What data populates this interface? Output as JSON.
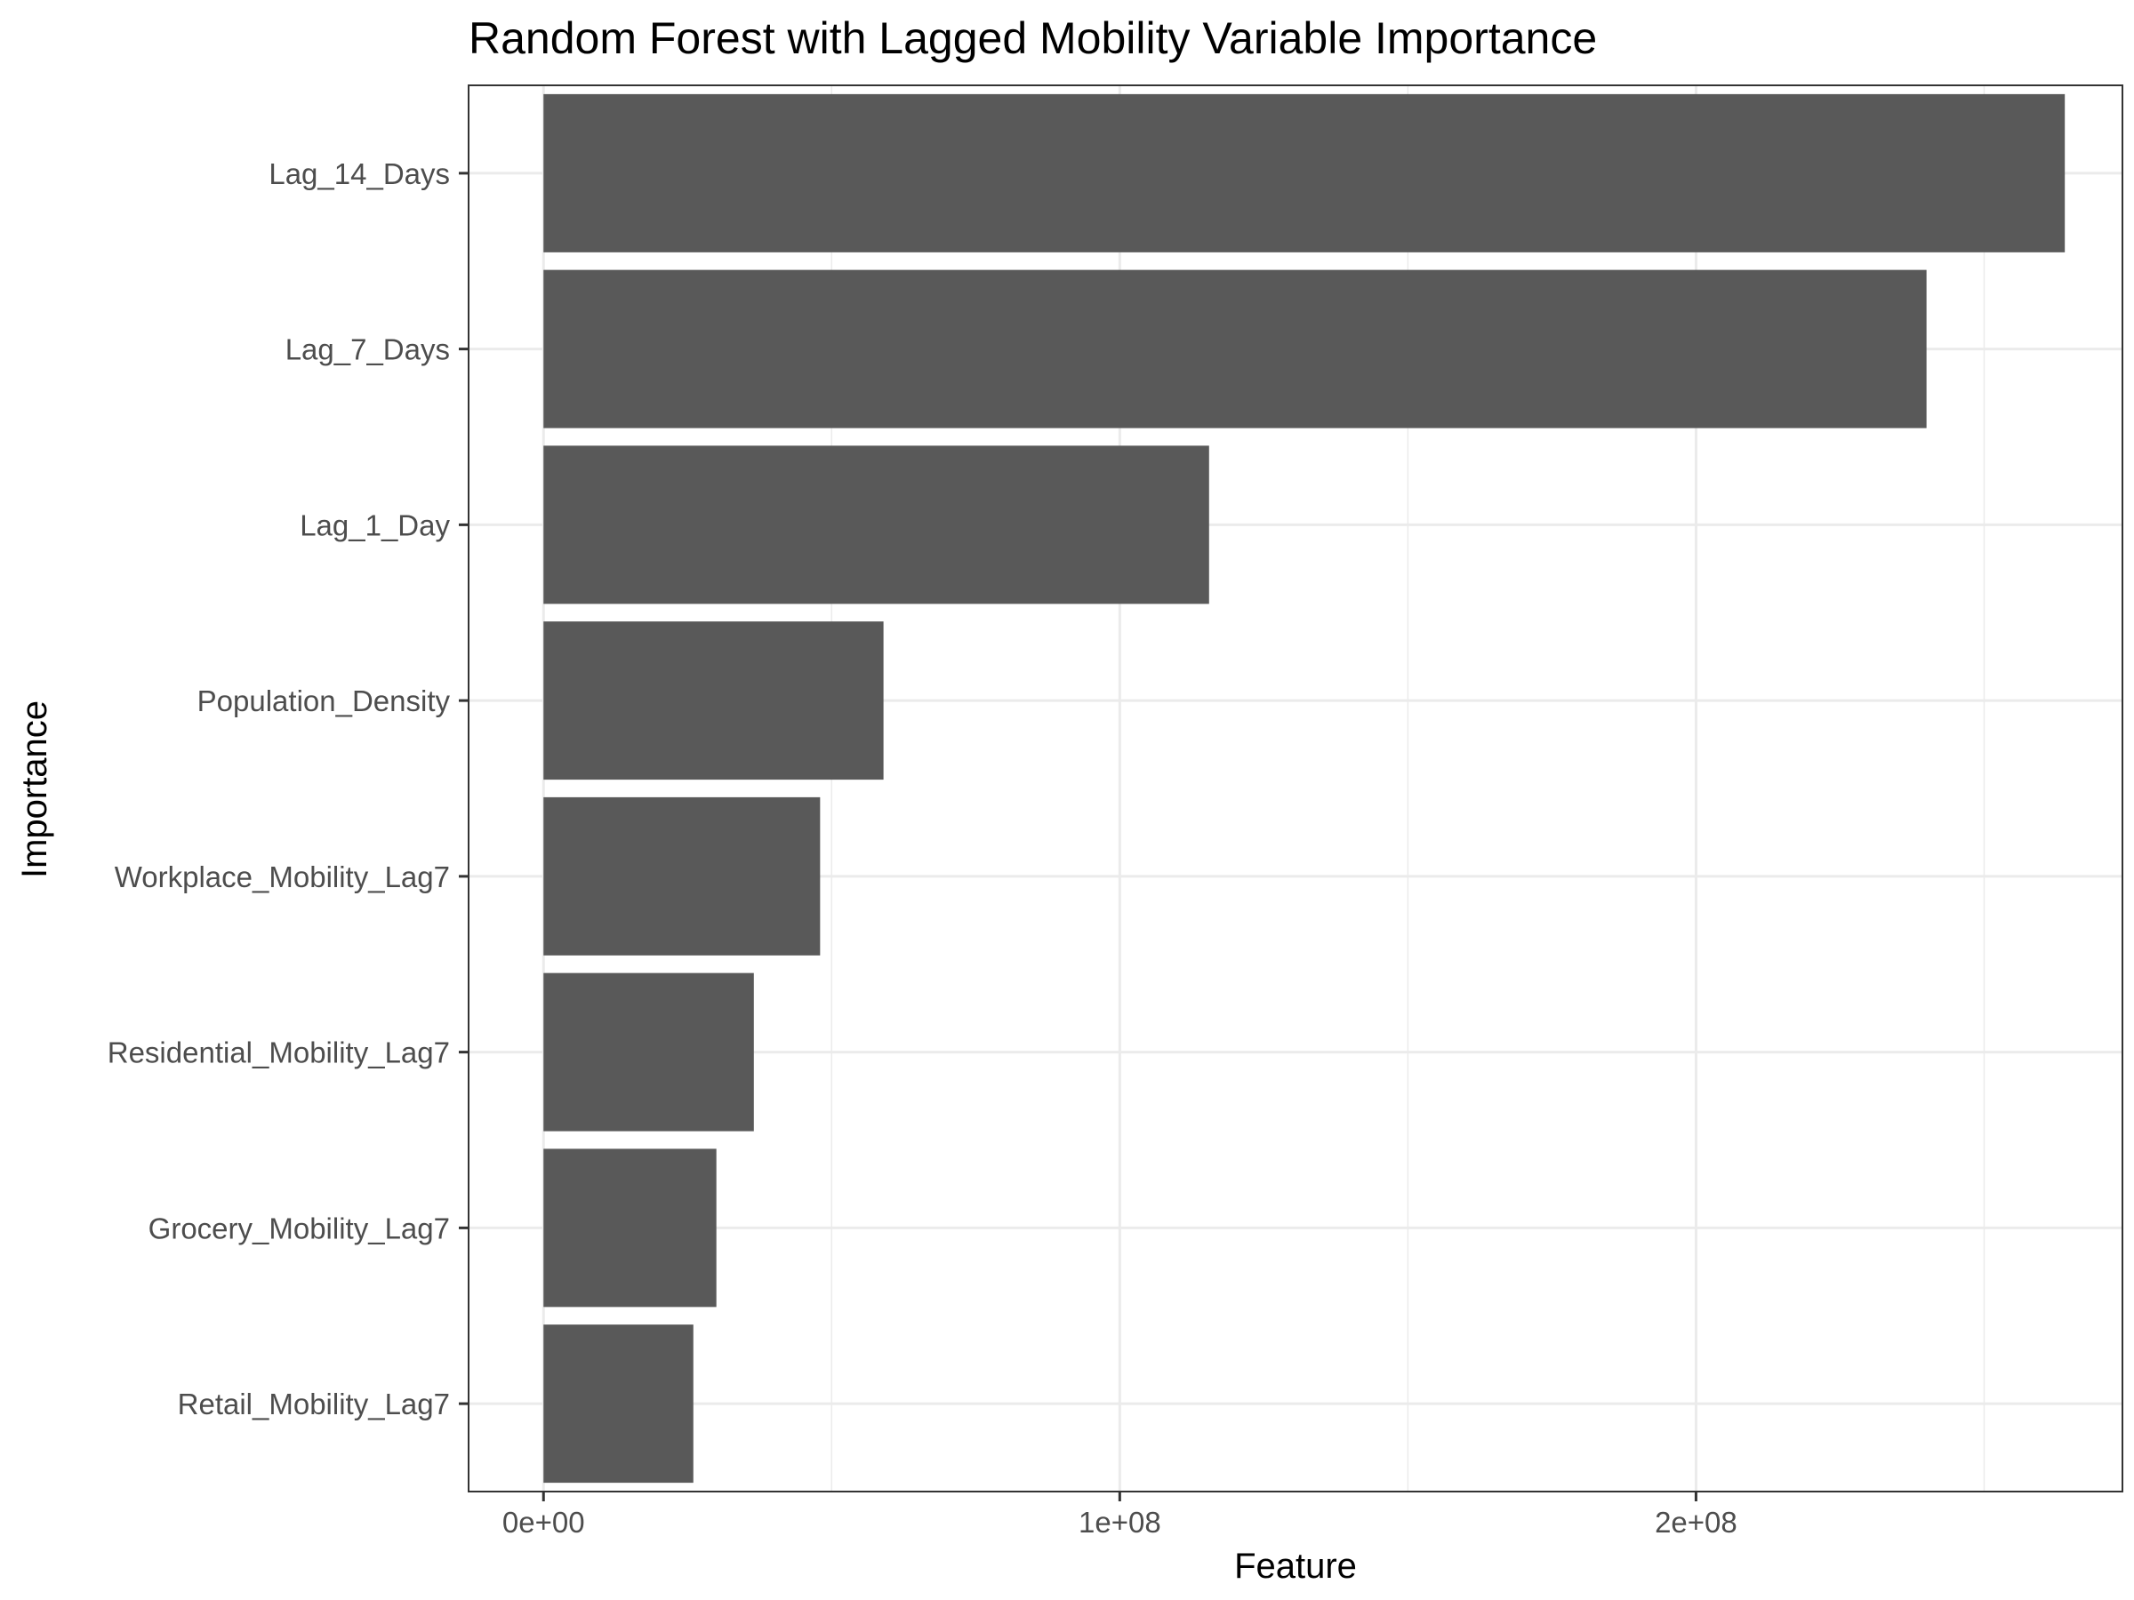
{
  "chart_data": {
    "type": "bar",
    "orientation": "horizontal",
    "title": "Random Forest with Lagged Mobility Variable Importance",
    "xlabel": "Feature",
    "ylabel": "Importance",
    "categories": [
      "Lag_14_Days",
      "Lag_7_Days",
      "Lag_1_Day",
      "Population_Density",
      "Workplace_Mobility_Lag7",
      "Residential_Mobility_Lag7",
      "Grocery_Mobility_Lag7",
      "Retail_Mobility_Lag7"
    ],
    "values": [
      264000000,
      240000000,
      115500000,
      59000000,
      48000000,
      36500000,
      30000000,
      26000000
    ],
    "xlim": [
      -13000000,
      274000000
    ],
    "xticks": [
      0,
      100000000,
      200000000
    ],
    "xtick_labels": [
      "0e+00",
      "1e+08",
      "2e+08"
    ],
    "grid": true,
    "bar_color": "#595959",
    "grid_color": "#ebebeb",
    "panel_border_color": "#333333"
  }
}
